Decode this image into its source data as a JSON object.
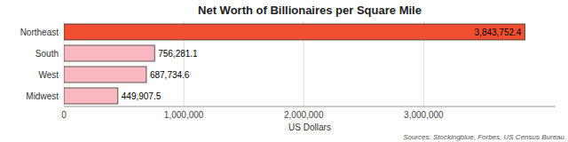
{
  "chart_data": {
    "type": "bar",
    "orientation": "horizontal",
    "title": "Net Worth of Billionaires per Square Mile",
    "xlabel": "US Dollars",
    "annotations": [
      "Sources: Stockingblue, Forbes, US Census Bureau"
    ],
    "categories": [
      "Midwest",
      "West",
      "South",
      "Northeast"
    ],
    "values": [
      449907.5,
      687734.6,
      756281.1,
      3843752.4
    ],
    "value_labels": [
      "449,907.5",
      "687,734.6",
      "756,281.1",
      "3,843,752.4"
    ],
    "colors": [
      "#f9b8bf",
      "#f9b8bf",
      "#f9b8bf",
      "#f05030"
    ],
    "xlim": [
      0,
      4100000
    ],
    "xticks": [
      0,
      {
        "value": 1000000,
        "label": "1,000,000"
      },
      {
        "value": 2000000,
        "label": "2,000,000"
      },
      {
        "value": 3000000,
        "label": "3,000,000"
      }
    ],
    "grid": true,
    "data_labels": true
  }
}
